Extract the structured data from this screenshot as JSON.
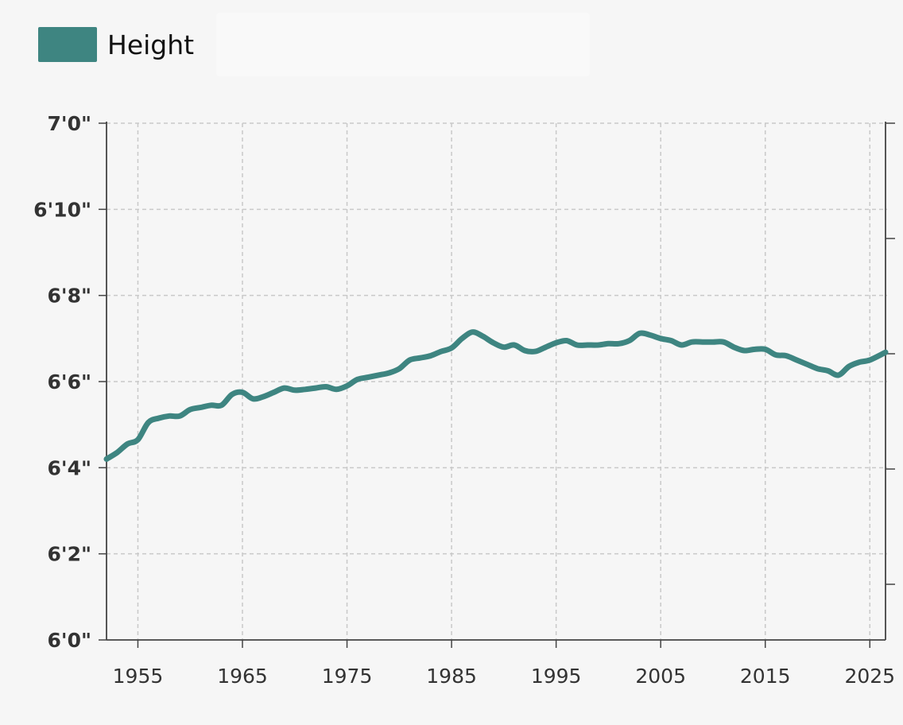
{
  "legend": {
    "label": "Height"
  },
  "colors": {
    "line": "#3e8581",
    "grid": "#c9c9c9",
    "axis": "#444444",
    "background": "#f6f6f6"
  },
  "chart_data": {
    "type": "line",
    "xlim": [
      1952,
      2026.5
    ],
    "ylim": [
      72,
      84
    ],
    "x_ticks": [
      {
        "value": 1955,
        "label": "1955"
      },
      {
        "value": 1965,
        "label": "1965"
      },
      {
        "value": 1975,
        "label": "1975"
      },
      {
        "value": 1985,
        "label": "1985"
      },
      {
        "value": 1995,
        "label": "1995"
      },
      {
        "value": 2005,
        "label": "2005"
      },
      {
        "value": 2015,
        "label": "2015"
      },
      {
        "value": 2025,
        "label": "2025"
      }
    ],
    "y_ticks": [
      {
        "value": 72,
        "label": "6'0\""
      },
      {
        "value": 74,
        "label": "6'2\""
      },
      {
        "value": 76,
        "label": "6'4\""
      },
      {
        "value": 78,
        "label": "6'6\""
      },
      {
        "value": 80,
        "label": "6'8\""
      },
      {
        "value": 82,
        "label": "6'10\""
      },
      {
        "value": 84,
        "label": "7'0\""
      }
    ],
    "grid": true,
    "legend_position": "top-left",
    "series": [
      {
        "name": "Height",
        "x": [
          1952,
          1953,
          1954,
          1955,
          1956,
          1957,
          1958,
          1959,
          1960,
          1961,
          1962,
          1963,
          1964,
          1965,
          1966,
          1967,
          1968,
          1969,
          1970,
          1971,
          1972,
          1973,
          1974,
          1975,
          1976,
          1977,
          1978,
          1979,
          1980,
          1981,
          1982,
          1983,
          1984,
          1985,
          1986,
          1987,
          1988,
          1989,
          1990,
          1991,
          1992,
          1993,
          1994,
          1995,
          1996,
          1997,
          1998,
          1999,
          2000,
          2001,
          2002,
          2003,
          2004,
          2005,
          2006,
          2007,
          2008,
          2009,
          2010,
          2011,
          2012,
          2013,
          2014,
          2015,
          2016,
          2017,
          2018,
          2019,
          2020,
          2021,
          2022,
          2023,
          2024,
          2025,
          2026.5
        ],
        "values": [
          76.2,
          76.35,
          76.55,
          76.65,
          77.05,
          77.15,
          77.2,
          77.2,
          77.35,
          77.4,
          77.45,
          77.45,
          77.7,
          77.75,
          77.6,
          77.65,
          77.75,
          77.85,
          77.8,
          77.82,
          77.85,
          77.88,
          77.82,
          77.9,
          78.05,
          78.1,
          78.15,
          78.2,
          78.3,
          78.5,
          78.55,
          78.6,
          78.7,
          78.78,
          79.0,
          79.15,
          79.05,
          78.9,
          78.8,
          78.85,
          78.72,
          78.7,
          78.8,
          78.9,
          78.95,
          78.85,
          78.85,
          78.85,
          78.88,
          78.88,
          78.95,
          79.12,
          79.08,
          79.0,
          78.95,
          78.85,
          78.92,
          78.92,
          78.92,
          78.92,
          78.8,
          78.72,
          78.75,
          78.75,
          78.62,
          78.6,
          78.5,
          78.4,
          78.3,
          78.25,
          78.15,
          78.35,
          78.45,
          78.5,
          78.68
        ]
      }
    ]
  }
}
